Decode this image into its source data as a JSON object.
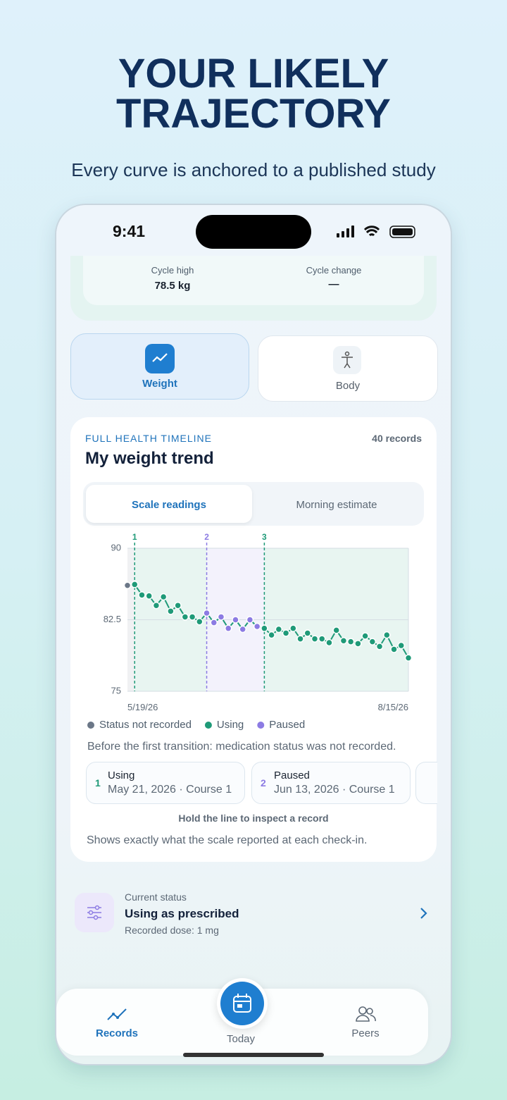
{
  "header": {
    "title_lines": [
      "YOUR LIKELY",
      "TRAJECTORY"
    ],
    "subtitle": "Every curve is anchored to a published study"
  },
  "status_bar": {
    "time": "9:41"
  },
  "summary": {
    "cycle_high_label": "Cycle high",
    "cycle_high_value": "78.5 kg",
    "cycle_change_label": "Cycle change",
    "cycle_change_value": "—"
  },
  "tabs": [
    "Weight",
    "Body"
  ],
  "card": {
    "eyebrow": "FULL HEALTH TIMELINE",
    "records": "40 records",
    "title": "My weight trend",
    "segments": [
      "Scale readings",
      "Morning estimate"
    ],
    "note": "Before the first transition: medication status was not recorded.",
    "transitions": [
      {
        "number": "1",
        "status": "Using",
        "date": "May 21, 2026",
        "course": "Course 1"
      },
      {
        "number": "2",
        "status": "Paused",
        "date": "Jun 13, 2026",
        "course": "Course 1"
      }
    ],
    "hint": "Hold the line to inspect a record",
    "footer": "Shows exactly what the scale reported at each check-in."
  },
  "chart_data": {
    "type": "line",
    "categories": [
      "5/19/26",
      null,
      null,
      null,
      null,
      null,
      null,
      null,
      null,
      null,
      null,
      null,
      null,
      null,
      null,
      null,
      null,
      null,
      null,
      null,
      null,
      null,
      null,
      null,
      null,
      null,
      null,
      null,
      null,
      null,
      null,
      null,
      null,
      null,
      null,
      null,
      null,
      null,
      null,
      "8/15/26"
    ],
    "series": [
      {
        "name": "Status not recorded",
        "color": "#6b7787",
        "values": [
          86.1,
          null,
          null,
          null,
          null,
          null,
          null,
          null,
          null,
          null,
          null,
          null,
          null,
          null,
          null,
          null,
          null,
          null,
          null,
          null,
          null,
          null,
          null,
          null,
          null,
          null,
          null,
          null,
          null,
          null,
          null,
          null,
          null,
          null,
          null,
          null,
          null,
          null,
          null,
          null
        ]
      },
      {
        "name": "Using",
        "color": "#1f9a78",
        "values": [
          null,
          86.2,
          85.1,
          85.0,
          84.0,
          84.9,
          83.4,
          84.0,
          82.8,
          82.8,
          82.3,
          null,
          null,
          null,
          null,
          null,
          null,
          null,
          null,
          81.6,
          80.9,
          81.5,
          81.1,
          81.6,
          80.5,
          81.1,
          80.5,
          80.5,
          80.1,
          81.4,
          80.3,
          80.2,
          80.0,
          80.8,
          80.2,
          79.7,
          80.9,
          79.4,
          79.8,
          78.5
        ]
      },
      {
        "name": "Paused",
        "color": "#8c7be3",
        "values": [
          null,
          null,
          null,
          null,
          null,
          null,
          null,
          null,
          null,
          null,
          null,
          83.2,
          82.2,
          82.8,
          81.6,
          82.5,
          81.5,
          82.5,
          81.8,
          null,
          null,
          null,
          null,
          null,
          null,
          null,
          null,
          null,
          null,
          null,
          null,
          null,
          null,
          null,
          null,
          null,
          null,
          null,
          null,
          null
        ]
      }
    ],
    "markers": [
      "1",
      "2",
      "3"
    ],
    "ylim": [
      75,
      90
    ],
    "yticks": [
      75,
      82.5,
      90
    ],
    "grid": true,
    "line_color": "#1f9a78"
  },
  "current": {
    "label": "Current status",
    "value": "Using as prescribed",
    "dose": "Recorded dose: 1 mg"
  },
  "nav": [
    "Records",
    "Today",
    "Peers"
  ]
}
